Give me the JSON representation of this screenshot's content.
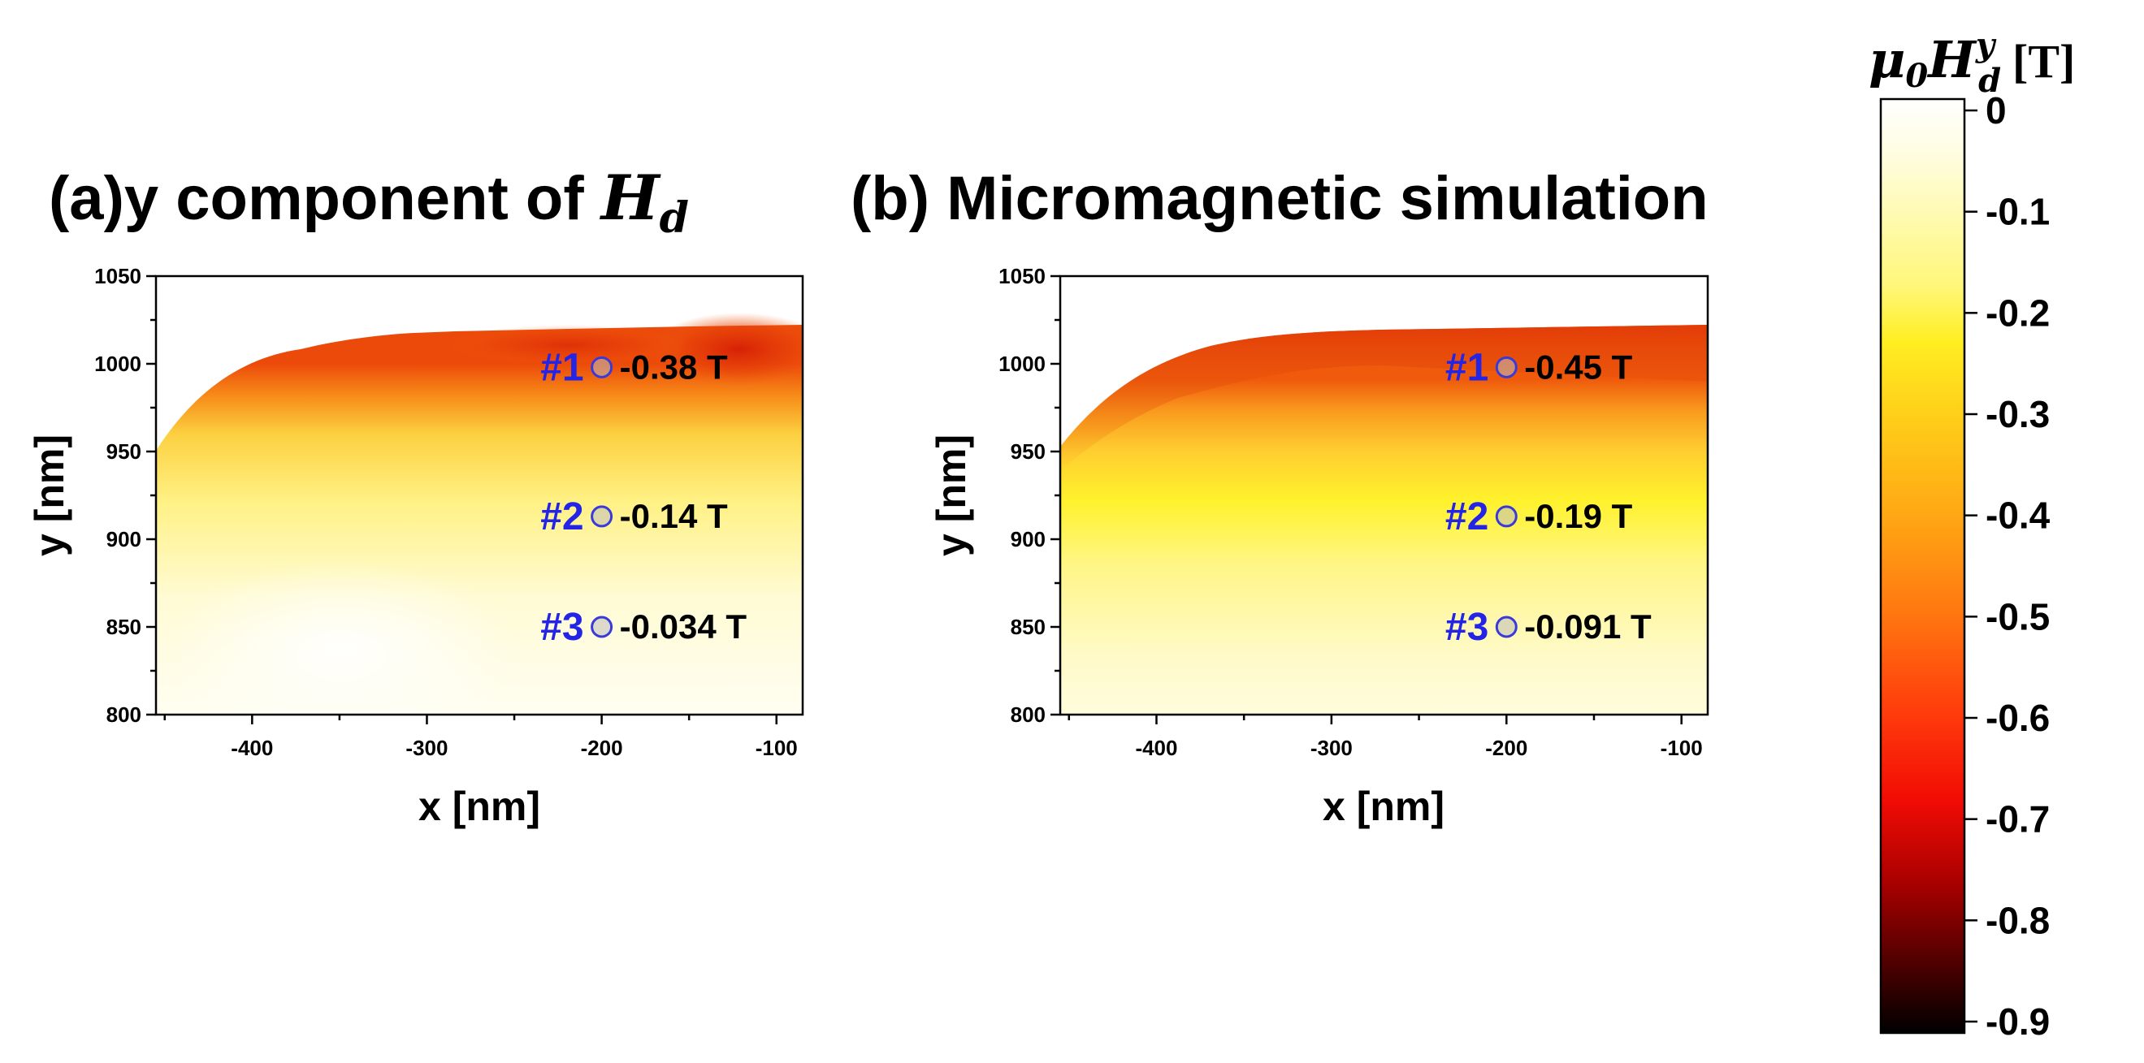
{
  "figure": {
    "colorbar": {
      "label_base": "μ",
      "label_sub": "0",
      "label_var": "H",
      "label_sup": "y",
      "label_sub2": "d",
      "label_unit": "[T]",
      "ticks": [
        "0",
        "-0.1",
        "-0.2",
        "-0.3",
        "-0.4",
        "-0.5",
        "-0.6",
        "-0.7",
        "-0.8",
        "-0.9"
      ],
      "range": [
        -0.9,
        0
      ]
    }
  },
  "chart_data": [
    {
      "type": "heatmap",
      "panel_label": "(a)y component of ",
      "title_var": "H",
      "title_sub": "d",
      "xlabel": "x [nm]",
      "ylabel": "y [nm]",
      "xlim": [
        -455,
        -85
      ],
      "ylim": [
        800,
        1050
      ],
      "xticks": [
        "-400",
        "-300",
        "-200",
        "-100"
      ],
      "yticks": [
        "800",
        "850",
        "900",
        "950",
        "1000",
        "1050"
      ],
      "points": [
        {
          "id": "#1",
          "x": -200,
          "y": 998,
          "value_label": "-0.38 T",
          "value": -0.38
        },
        {
          "id": "#2",
          "x": -200,
          "y": 913,
          "value_label": "-0.14 T",
          "value": -0.14
        },
        {
          "id": "#3",
          "x": -200,
          "y": 850,
          "value_label": "-0.034 T",
          "value": -0.034
        }
      ]
    },
    {
      "type": "heatmap",
      "panel_label": "(b) Micromagnetic simulation",
      "title_var": "",
      "title_sub": "",
      "xlabel": "x [nm]",
      "ylabel": "y [nm]",
      "xlim": [
        -455,
        -85
      ],
      "ylim": [
        800,
        1050
      ],
      "xticks": [
        "-400",
        "-300",
        "-200",
        "-100"
      ],
      "yticks": [
        "800",
        "850",
        "900",
        "950",
        "1000",
        "1050"
      ],
      "points": [
        {
          "id": "#1",
          "x": -200,
          "y": 998,
          "value_label": "-0.45 T",
          "value": -0.45
        },
        {
          "id": "#2",
          "x": -200,
          "y": 913,
          "value_label": "-0.19 T",
          "value": -0.19
        },
        {
          "id": "#3",
          "x": -200,
          "y": 850,
          "value_label": "-0.091 T",
          "value": -0.091
        }
      ]
    }
  ]
}
